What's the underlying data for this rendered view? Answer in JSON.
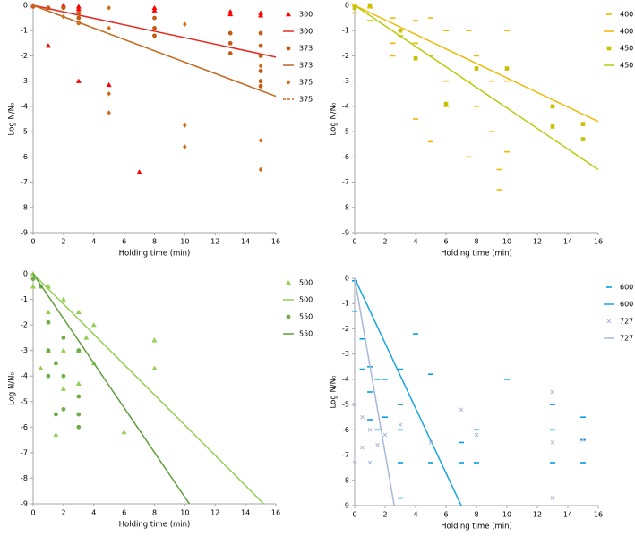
{
  "chart_data": [
    {
      "type": "scatter",
      "xlabel": "Holding time (min)",
      "ylabel": "Log N/N₀",
      "xlim": [
        0,
        16
      ],
      "ylim": [
        -9,
        0
      ],
      "xticks": [
        0,
        2,
        4,
        6,
        8,
        10,
        12,
        14,
        16
      ],
      "yticks": [
        0,
        -1,
        -2,
        -3,
        -4,
        -5,
        -6,
        -7,
        -8,
        -9
      ],
      "series": [
        {
          "name": "300",
          "color": "#ff0000",
          "marker": "triangle",
          "x": [
            0,
            1,
            1,
            2,
            3,
            3,
            3,
            5,
            7,
            8,
            8,
            13,
            13,
            15,
            15
          ],
          "values": [
            0,
            -1.6,
            -0.1,
            0,
            -0.05,
            -0.15,
            -3,
            -3.15,
            -6.6,
            -0.1,
            -0.2,
            -0.25,
            -0.35,
            -0.3,
            -0.4
          ]
        },
        {
          "name": "300",
          "color": "#e8281e",
          "marker": "line",
          "x": [
            0,
            16
          ],
          "values": [
            0,
            -2.05
          ]
        },
        {
          "name": "373",
          "color": "#c55a11",
          "marker": "circle",
          "x": [
            0,
            1,
            2,
            3,
            3,
            3,
            8,
            8,
            8,
            13,
            13,
            13,
            15,
            15,
            15,
            15,
            15,
            15
          ],
          "values": [
            -0.05,
            -0.1,
            -0.1,
            -0.3,
            -0.5,
            -0.7,
            -0.5,
            -0.9,
            -1.2,
            -1.1,
            -1.5,
            -1.9,
            -1.1,
            -1.6,
            -2.0,
            -2.6,
            -3.0,
            -3.2
          ]
        },
        {
          "name": "373",
          "color": "#b8652a",
          "marker": "line",
          "x": [
            0,
            16
          ],
          "values": [
            0,
            -3.6
          ]
        },
        {
          "name": "375",
          "color": "#d0701e",
          "marker": "diamond",
          "x": [
            2,
            3,
            5,
            5,
            5,
            5,
            10,
            10,
            10,
            15,
            15,
            15
          ],
          "values": [
            -0.45,
            -0.7,
            -0.9,
            -3.5,
            -4.25,
            -0.1,
            -0.75,
            -4.75,
            -5.6,
            -5.35,
            -6.5,
            -2.4
          ]
        },
        {
          "name": "375",
          "color": "#d0701e",
          "marker": "line",
          "dashed": true,
          "x": [
            0,
            16
          ],
          "values": [
            0,
            -3.6
          ]
        }
      ]
    },
    {
      "type": "scatter",
      "xlabel": "Holding time (min)",
      "ylabel": "Log N/N₀",
      "xlim": [
        0,
        16
      ],
      "ylim": [
        -9,
        0
      ],
      "xticks": [
        0,
        2,
        4,
        6,
        8,
        10,
        12,
        14,
        16
      ],
      "yticks": [
        0,
        -1,
        -2,
        -3,
        -4,
        -5,
        -6,
        -7,
        -8,
        -9
      ],
      "series": [
        {
          "name": "400",
          "color": "#f2b800",
          "marker": "dash",
          "x": [
            0,
            0,
            1,
            1,
            2.5,
            2.5,
            2.5,
            3,
            4,
            4,
            4,
            5,
            5,
            5,
            6,
            6,
            6,
            7.5,
            7.5,
            7.5,
            8,
            8,
            9,
            9,
            9.5,
            9.5,
            10,
            10,
            10
          ],
          "values": [
            0,
            -0.3,
            -0.1,
            -0.6,
            -0.5,
            -1.5,
            -2,
            -1.2,
            -0.6,
            -1.5,
            -4.5,
            -0.5,
            -2,
            -5.4,
            -1,
            -3,
            -4,
            -1,
            -3,
            -6,
            -2,
            -4,
            -3,
            -5,
            -6.5,
            -7.3,
            -1,
            -3,
            -5.8
          ]
        },
        {
          "name": "400",
          "color": "#f2b800",
          "marker": "line",
          "x": [
            0,
            16
          ],
          "values": [
            0,
            -4.6
          ]
        },
        {
          "name": "450",
          "color": "#c8c000",
          "marker": "square",
          "x": [
            0,
            1,
            3,
            4,
            6,
            8,
            10,
            13,
            13,
            15,
            15
          ],
          "values": [
            -0.1,
            0,
            -1,
            -2.1,
            -3.9,
            -2.5,
            -2.5,
            -4,
            -4.8,
            -5.3,
            -4.7
          ]
        },
        {
          "name": "450",
          "color": "#b8cc10",
          "marker": "line",
          "x": [
            0,
            16
          ],
          "values": [
            0,
            -6.5
          ]
        }
      ]
    },
    {
      "type": "scatter",
      "xlabel": "Holding time (min)",
      "ylabel": "Log N/N₀",
      "xlim": [
        0,
        16
      ],
      "ylim": [
        -9,
        0
      ],
      "xticks": [
        0,
        2,
        4,
        6,
        8,
        10,
        12,
        14,
        16
      ],
      "yticks": [
        0,
        -1,
        -2,
        -3,
        -4,
        -5,
        -6,
        -7,
        -8,
        -9
      ],
      "series": [
        {
          "name": "500",
          "color": "#92d050",
          "marker": "triangle",
          "x": [
            0,
            0,
            0.5,
            1,
            1,
            1,
            1.5,
            2,
            2,
            2,
            3,
            3,
            3,
            3.5,
            4,
            4,
            6,
            8,
            8
          ],
          "values": [
            0,
            -0.5,
            -3.7,
            -0.5,
            -1.5,
            -3,
            -6.3,
            -1,
            -3,
            -4.5,
            -1.5,
            -3,
            -4.3,
            -2.5,
            -2,
            -3.5,
            -6.2,
            -2.6,
            -3.7
          ]
        },
        {
          "name": "500",
          "color": "#92d050",
          "marker": "line",
          "x": [
            0,
            15.2
          ],
          "values": [
            0,
            -9
          ]
        },
        {
          "name": "550",
          "color": "#70ad47",
          "marker": "circle",
          "x": [
            0,
            0.5,
            1,
            1,
            1,
            1.5,
            1.5,
            2,
            2,
            2,
            3,
            3,
            3,
            3
          ],
          "values": [
            -0.2,
            -0.5,
            -1.9,
            -3,
            -4,
            -3.5,
            -5.5,
            -2.5,
            -4,
            -5.3,
            -3,
            -4.8,
            -5.5,
            -6
          ]
        },
        {
          "name": "550",
          "color": "#5e9e3a",
          "marker": "line",
          "x": [
            0,
            10.3
          ],
          "values": [
            0,
            -9
          ]
        }
      ]
    },
    {
      "type": "scatter",
      "xlabel": "Holding time (min)",
      "ylabel": "Log N/N₀",
      "xlim": [
        0,
        16
      ],
      "ylim": [
        -9,
        0
      ],
      "xticks": [
        0,
        2,
        4,
        6,
        8,
        10,
        12,
        14,
        16
      ],
      "yticks": [
        0,
        -1,
        -2,
        -3,
        -4,
        -5,
        -6,
        -7,
        -8,
        -9
      ],
      "series": [
        {
          "name": "600",
          "color": "#00a0e8",
          "marker": "dash",
          "x": [
            0,
            0,
            0.5,
            0.5,
            1,
            1,
            1,
            1.5,
            1.5,
            2,
            2,
            3,
            3,
            3,
            3,
            3,
            4,
            5,
            5,
            7,
            7,
            8,
            8,
            10,
            13,
            13,
            13,
            15,
            15,
            15
          ],
          "values": [
            -0.1,
            -1.3,
            -2.4,
            -3.6,
            -3.5,
            -4.5,
            -5.6,
            -4,
            -6,
            -4,
            -5.5,
            -3.6,
            -5,
            -6,
            -7.3,
            -8.7,
            -2.2,
            -3.8,
            -7.3,
            -7.3,
            -6.5,
            -6,
            -7.3,
            -4,
            -5,
            -6,
            -7.3,
            -5.5,
            -6.4,
            -7.3
          ]
        },
        {
          "name": "600",
          "color": "#1ca5e0",
          "marker": "line",
          "x": [
            0,
            7
          ],
          "values": [
            0,
            -9
          ]
        },
        {
          "name": "727",
          "color": "#aab8d8",
          "marker": "x",
          "x": [
            0,
            0,
            0.5,
            0.5,
            1,
            1,
            1.5,
            2,
            3,
            5,
            7,
            8,
            13,
            13,
            13,
            15
          ],
          "values": [
            -5,
            -7.3,
            -5.5,
            -6.7,
            -6,
            -7.3,
            -6.6,
            -6.2,
            -5.8,
            -6.5,
            -5.2,
            -6.2,
            -4.5,
            -6.5,
            -8.7,
            -6.4
          ]
        },
        {
          "name": "727",
          "color": "#a9b8d8",
          "marker": "line",
          "x": [
            0,
            2.6
          ],
          "values": [
            0,
            -9
          ]
        }
      ]
    }
  ]
}
